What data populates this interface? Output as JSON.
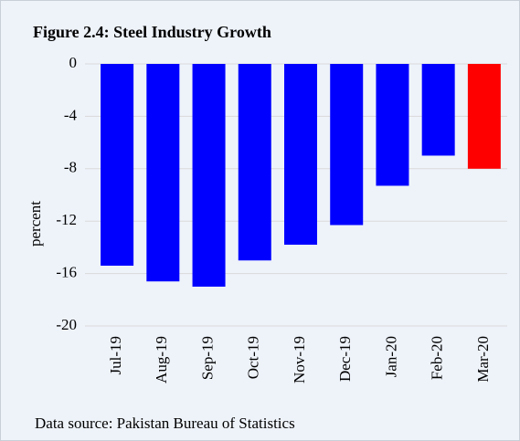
{
  "chart_data": {
    "type": "bar",
    "title": "Figure 2.4: Steel Industry Growth",
    "y_label": "percent",
    "source": "Data source: Pakistan Bureau of Statistics",
    "categories": [
      "Jul-19",
      "Aug-19",
      "Sep-19",
      "Oct-19",
      "Nov-19",
      "Dec-19",
      "Jan-20",
      "Feb-20",
      "Mar-20"
    ],
    "values": [
      -15.4,
      -16.6,
      -17.0,
      -15.0,
      -13.8,
      -12.3,
      -9.3,
      -7.0,
      -8.0
    ],
    "colors": [
      "#0000ff",
      "#0000ff",
      "#0000ff",
      "#0000ff",
      "#0000ff",
      "#0000ff",
      "#0000ff",
      "#0000ff",
      "#ff0000"
    ],
    "ylim": [
      -20,
      0
    ],
    "yticks": [
      0,
      -4,
      -8,
      -12,
      -16,
      -20
    ],
    "grid": true
  }
}
